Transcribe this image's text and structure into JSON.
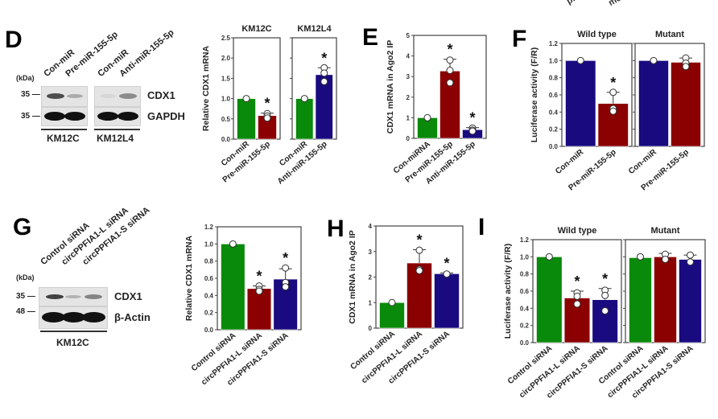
{
  "top_fragments": [
    "pri",
    "me"
  ],
  "panels": {
    "D": {
      "letter": "D",
      "kda": "(kDa)",
      "lanes": [
        "Con-miR",
        "Pre-miR-155-5p",
        "Con-miR",
        "Anti-miR-155-5p"
      ],
      "markers": [
        "35 —",
        "35 —"
      ],
      "bands": [
        "CDX1",
        "GAPDH"
      ],
      "cell_lines": [
        "KM12C",
        "KM12L4"
      ],
      "blot_intensity": {
        "CDX1": [
          0.85,
          0.35,
          0.1,
          0.55
        ],
        "GAPDH": [
          1.0,
          1.0,
          1.0,
          1.0
        ]
      }
    },
    "G": {
      "letter": "G",
      "kda": "(kDa)",
      "lanes": [
        "Control siRNA",
        "circPPFIA1-L siRNA",
        "circPPFIA1-S siRNA"
      ],
      "markers": [
        "35 —",
        "48 —"
      ],
      "bands": [
        "CDX1",
        "β-Actin"
      ],
      "cell_lines": [
        "KM12C"
      ],
      "blot_intensity": {
        "CDX1": [
          0.9,
          0.3,
          0.55
        ],
        "β-Actin": [
          1.0,
          1.0,
          1.0
        ]
      }
    },
    "E": {
      "letter": "E"
    },
    "F": {
      "letter": "F"
    },
    "H": {
      "letter": "H"
    },
    "I": {
      "letter": "I"
    }
  },
  "colors": {
    "green": "#0a8a0a",
    "red": "#8b0000",
    "blue": "#1a0a80"
  },
  "chart_data": [
    {
      "id": "D-chart",
      "type": "bar",
      "ylabel": "Relative CDX1 mRNA",
      "ylim": [
        0,
        2.5
      ],
      "yticks": [
        "0.0",
        "0.5",
        "1.0",
        "1.5",
        "2.0",
        "2.5"
      ],
      "facets": [
        {
          "title": "KM12C",
          "categories": [
            "Con-miR",
            "Pre-miR-155-5p"
          ],
          "values": [
            1.0,
            0.58
          ],
          "err": [
            0,
            0.06
          ],
          "colors": [
            "green",
            "red"
          ],
          "points": [
            [
              1.0
            ],
            [
              0.63,
              0.57,
              0.52
            ]
          ],
          "sig": [
            false,
            true
          ]
        },
        {
          "title": "KM12L4",
          "categories": [
            "Con-miR",
            "Anti-miR-155-5p"
          ],
          "values": [
            1.0,
            1.59
          ],
          "err": [
            0,
            0.17
          ],
          "colors": [
            "green",
            "blue"
          ],
          "points": [
            [
              1.0
            ],
            [
              1.76,
              1.63,
              1.42
            ]
          ],
          "sig": [
            false,
            true
          ]
        }
      ]
    },
    {
      "id": "E-chart",
      "type": "bar",
      "ylabel": "CDX1 mRNA in Ago2 IP",
      "ylim": [
        0,
        5
      ],
      "yticks": [
        "0",
        "1",
        "2",
        "3",
        "4",
        "5"
      ],
      "facets": [
        {
          "title": "",
          "categories": [
            "Con-miRNA",
            "Pre-miR-155-5p",
            "Anti-miR-155-5p"
          ],
          "values": [
            1.0,
            3.27,
            0.42
          ],
          "err": [
            0,
            0.57,
            0.1
          ],
          "colors": [
            "green",
            "red",
            "blue"
          ],
          "points": [
            [
              1.0
            ],
            [
              3.8,
              3.3,
              2.7
            ],
            [
              0.5,
              0.4,
              0.35
            ]
          ],
          "sig": [
            false,
            true,
            true
          ]
        }
      ]
    },
    {
      "id": "F-chart",
      "type": "bar",
      "ylabel": "Luciferase activity (F/R)",
      "ylim": [
        0,
        1.2
      ],
      "yticks": [
        "0.0",
        "0.2",
        "0.4",
        "0.6",
        "0.8",
        "1.0",
        "1.2"
      ],
      "facets": [
        {
          "title": "Wild type",
          "categories": [
            "Con-miR",
            "Pre-miR-155-5p"
          ],
          "values": [
            1.0,
            0.5
          ],
          "err": [
            0,
            0.13
          ],
          "colors": [
            "blue",
            "red"
          ],
          "points": [
            [
              1.0
            ],
            [
              0.63,
              0.44,
              0.41
            ]
          ],
          "sig": [
            false,
            true
          ]
        },
        {
          "title": "Mutant",
          "categories": [
            "Con-miR",
            "Pre-miR-155-5p"
          ],
          "values": [
            1.0,
            0.98
          ],
          "err": [
            0,
            0.05
          ],
          "colors": [
            "blue",
            "red"
          ],
          "points": [
            [
              1.0
            ],
            [
              1.03,
              0.97,
              0.93
            ]
          ],
          "sig": [
            false,
            false
          ]
        }
      ]
    },
    {
      "id": "G-chart",
      "type": "bar",
      "ylabel": "Relative CDX1 mRNA",
      "ylim": [
        0,
        1.2
      ],
      "yticks": [
        "0.0",
        "0.2",
        "0.4",
        "0.6",
        "0.8",
        "1.0",
        "1.2"
      ],
      "facets": [
        {
          "title": "",
          "categories": [
            "Control siRNA",
            "circPPFIA1-L siRNA",
            "circPPFIA1-S siRNA"
          ],
          "values": [
            1.0,
            0.48,
            0.59
          ],
          "err": [
            0,
            0.03,
            0.12
          ],
          "colors": [
            "green",
            "red",
            "blue"
          ],
          "points": [
            [
              1.0
            ],
            [
              0.51,
              0.47,
              0.45
            ],
            [
              0.72,
              0.55,
              0.5
            ]
          ],
          "sig": [
            false,
            true,
            true
          ]
        }
      ]
    },
    {
      "id": "H-chart",
      "type": "bar",
      "ylabel": "CDX1 mRNA in Ago2 IP",
      "ylim": [
        0,
        4
      ],
      "yticks": [
        "0",
        "1",
        "2",
        "3",
        "4"
      ],
      "facets": [
        {
          "title": "",
          "categories": [
            "Control siRNA",
            "circPPFIA1-L siRNA",
            "circPPFIA1-S siRNA"
          ],
          "values": [
            1.0,
            2.55,
            2.13
          ],
          "err": [
            0,
            0.52,
            0.03
          ],
          "colors": [
            "green",
            "red",
            "blue"
          ],
          "points": [
            [
              1.0
            ],
            [
              3.05,
              2.3,
              2.25
            ],
            [
              2.12
            ]
          ],
          "sig": [
            false,
            true,
            true
          ]
        }
      ]
    },
    {
      "id": "I-chart",
      "type": "bar",
      "ylabel": "Luciferase activity (F/R)",
      "ylim": [
        0,
        1.2
      ],
      "yticks": [
        "0.0",
        "0.2",
        "0.4",
        "0.6",
        "0.8",
        "1.0",
        "1.2"
      ],
      "facets": [
        {
          "title": "Wild type",
          "categories": [
            "Control siRNA",
            "circPPFIA1-L siRNA",
            "circPPFIA1-S siRNA"
          ],
          "values": [
            1.0,
            0.52,
            0.5
          ],
          "err": [
            0,
            0.08,
            0.13
          ],
          "colors": [
            "green",
            "red",
            "blue"
          ],
          "points": [
            [
              1.0
            ],
            [
              0.58,
              0.54,
              0.45
            ],
            [
              0.61,
              0.55,
              0.37
            ]
          ],
          "sig": [
            false,
            true,
            true
          ]
        },
        {
          "title": "Mutant",
          "categories": [
            "Control siRNA",
            "circPPFIA1-L siRNA",
            "circPPFIA1-S siRNA"
          ],
          "values": [
            0.99,
            1.0,
            0.97
          ],
          "err": [
            0,
            0.04,
            0.05
          ],
          "colors": [
            "green",
            "red",
            "blue"
          ],
          "points": [
            [
              1.0
            ],
            [
              1.03,
              0.97
            ],
            [
              1.02,
              0.94
            ]
          ],
          "sig": [
            false,
            false,
            false
          ]
        }
      ]
    }
  ]
}
